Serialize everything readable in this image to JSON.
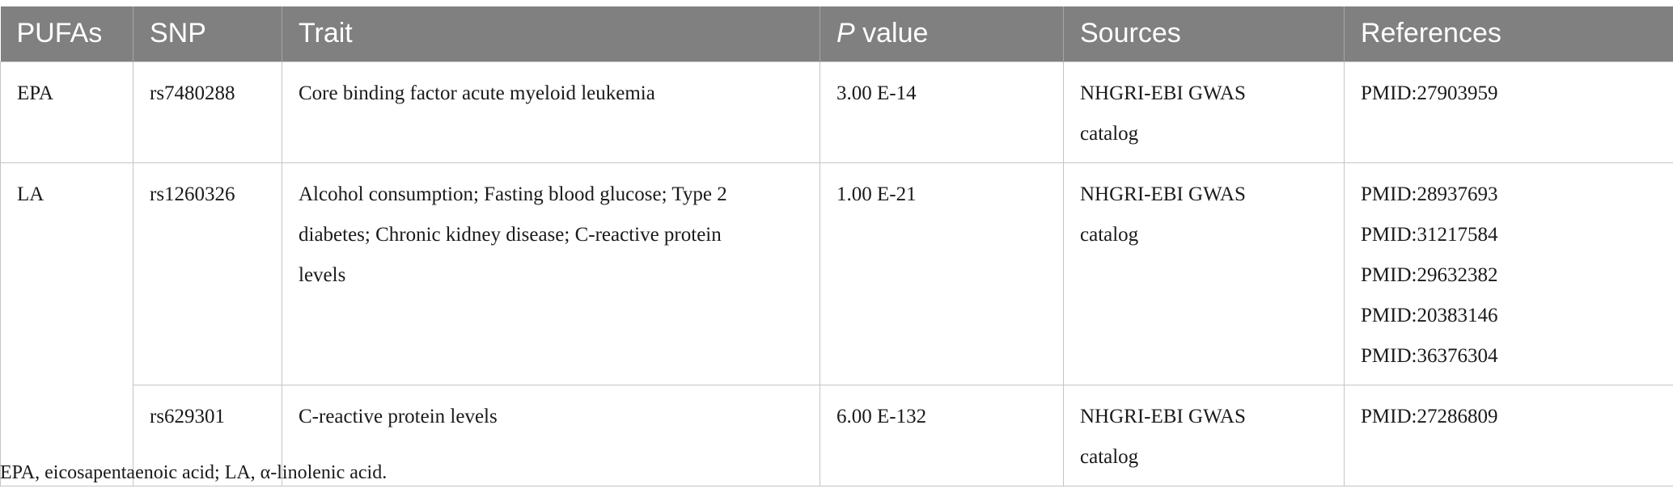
{
  "table": {
    "headers": {
      "pufas": "PUFAs",
      "snp": "SNP",
      "trait": "Trait",
      "pvalue_italic": "P",
      "pvalue_rest": " value",
      "sources": "Sources",
      "references": "References"
    },
    "rows": [
      {
        "pufas": "EPA",
        "snp": "rs7480288",
        "trait": [
          "Core binding factor acute myeloid leukemia"
        ],
        "pvalue": "3.00 E-14",
        "sources": [
          "NHGRI-EBI GWAS",
          "catalog"
        ],
        "references": [
          "PMID:27903959"
        ]
      },
      {
        "pufas": "LA",
        "snp": "rs1260326",
        "trait": [
          "Alcohol consumption; Fasting blood glucose; Type 2",
          "diabetes; Chronic kidney disease; C-reactive protein",
          "levels"
        ],
        "pvalue": "1.00 E-21",
        "sources": [
          "NHGRI-EBI GWAS",
          "catalog"
        ],
        "references": [
          "PMID:28937693",
          "PMID:31217584",
          "PMID:29632382",
          "PMID:20383146",
          "PMID:36376304"
        ]
      },
      {
        "snp": "rs629301",
        "trait": [
          "C-reactive protein levels"
        ],
        "pvalue": "6.00 E-132",
        "sources": [
          "NHGRI-EBI GWAS",
          "catalog"
        ],
        "references": [
          "PMID:27286809"
        ]
      }
    ]
  },
  "footnote": "EPA, eicosapentaenoic acid; LA, α-linolenic acid."
}
